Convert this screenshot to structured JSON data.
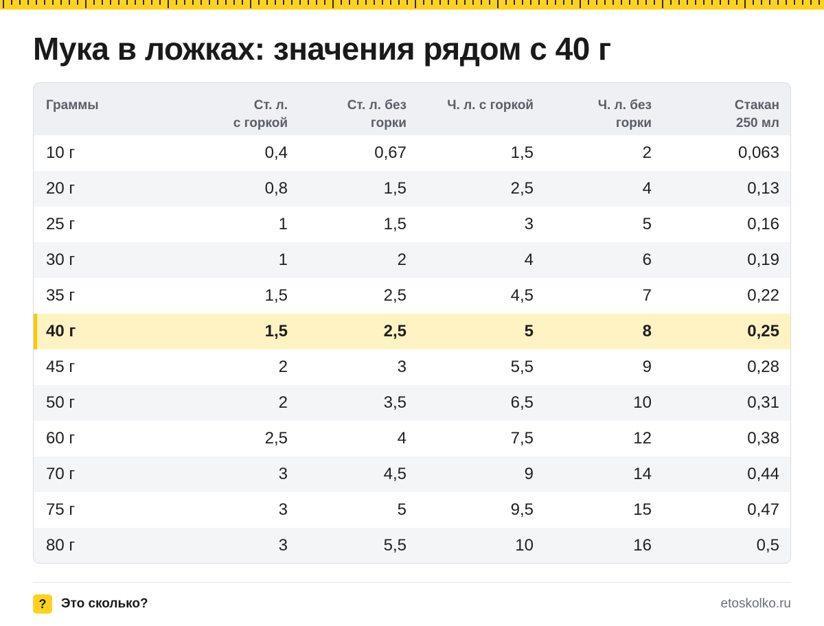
{
  "title": "Мука в ложках: значения рядом с 40 г",
  "colors": {
    "accent": "#ffd21f",
    "highlight_row": "#fff3c4",
    "header_bg": "#eef0f3"
  },
  "table": {
    "headers": [
      {
        "line1": "Граммы",
        "line2": ""
      },
      {
        "line1": "Ст. л.",
        "line2": "с горкой"
      },
      {
        "line1": "Ст. л. без",
        "line2": "горки"
      },
      {
        "line1": "Ч. л. с горкой",
        "line2": ""
      },
      {
        "line1": "Ч. л. без",
        "line2": "горки"
      },
      {
        "line1": "Стакан",
        "line2": "250 мл"
      }
    ],
    "rows": [
      [
        "10 г",
        "0,4",
        "0,67",
        "1,5",
        "2",
        "0,063"
      ],
      [
        "20 г",
        "0,8",
        "1,5",
        "2,5",
        "4",
        "0,13"
      ],
      [
        "25 г",
        "1",
        "1,5",
        "3",
        "5",
        "0,16"
      ],
      [
        "30 г",
        "1",
        "2",
        "4",
        "6",
        "0,19"
      ],
      [
        "35 г",
        "1,5",
        "2,5",
        "4,5",
        "7",
        "0,22"
      ],
      [
        "40 г",
        "1,5",
        "2,5",
        "5",
        "8",
        "0,25"
      ],
      [
        "45 г",
        "2",
        "3",
        "5,5",
        "9",
        "0,28"
      ],
      [
        "50 г",
        "2",
        "3,5",
        "6,5",
        "10",
        "0,31"
      ],
      [
        "60 г",
        "2,5",
        "4",
        "7,5",
        "12",
        "0,38"
      ],
      [
        "70 г",
        "3",
        "4,5",
        "9",
        "14",
        "0,44"
      ],
      [
        "75 г",
        "3",
        "5",
        "9,5",
        "15",
        "0,47"
      ],
      [
        "80 г",
        "3",
        "5,5",
        "10",
        "16",
        "0,5"
      ]
    ],
    "highlighted_row_index": 5
  },
  "footer": {
    "badge_text": "?",
    "brand": "Это сколько?",
    "site": "etoskolko.ru"
  }
}
